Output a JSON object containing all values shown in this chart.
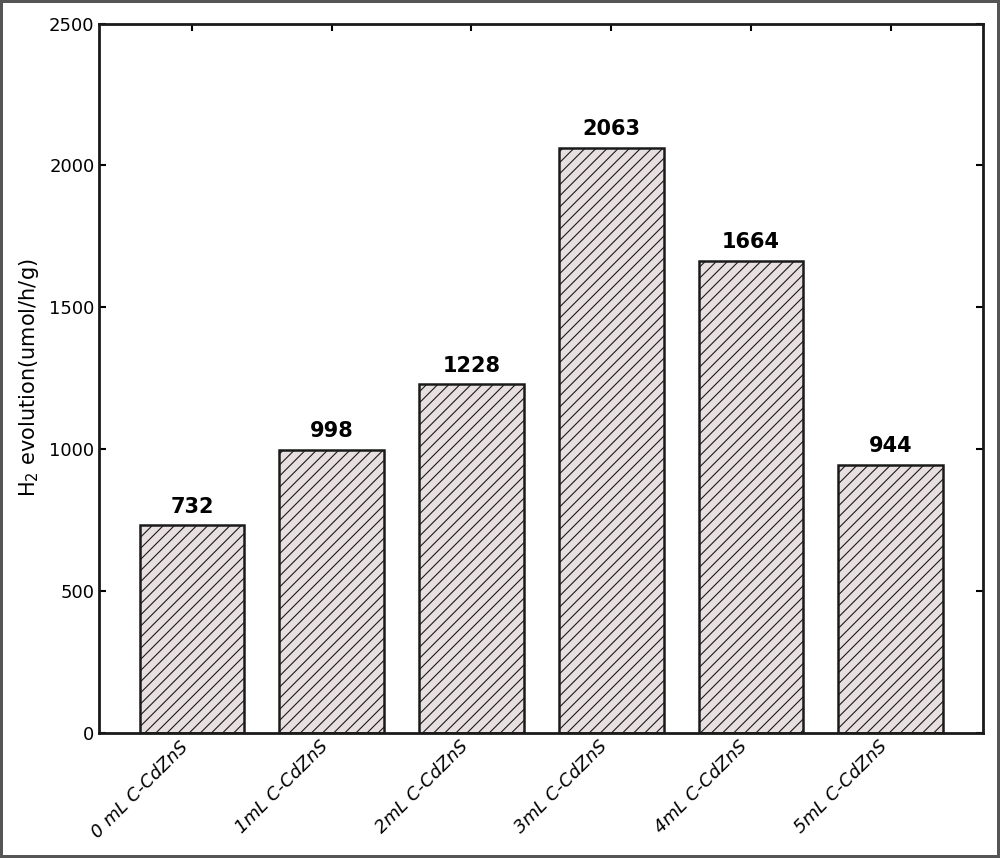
{
  "categories": [
    "0 mL C-CdZnS",
    "1mL C-CdZnS",
    "2mL C-CdZnS",
    "3mL C-CdZnS",
    "4mL C-CdZnS",
    "5mL C-CdZnS"
  ],
  "values": [
    732,
    998,
    1228,
    2063,
    1664,
    944
  ],
  "ylabel": "H$_2$ evolution(umol/h/g)",
  "ylim": [
    0,
    2500
  ],
  "yticks": [
    0,
    500,
    1000,
    1500,
    2000,
    2500
  ],
  "bar_facecolor": "#e8e0e0",
  "bar_edgecolor": "#1a1a1a",
  "hatch": "///",
  "bar_width": 0.75,
  "label_fontsize": 13,
  "tick_fontsize": 13,
  "ylabel_fontsize": 15,
  "value_fontsize": 15,
  "background_color": "#ffffff",
  "axes_linewidth": 2.0,
  "hatch_linewidth": 0.8
}
